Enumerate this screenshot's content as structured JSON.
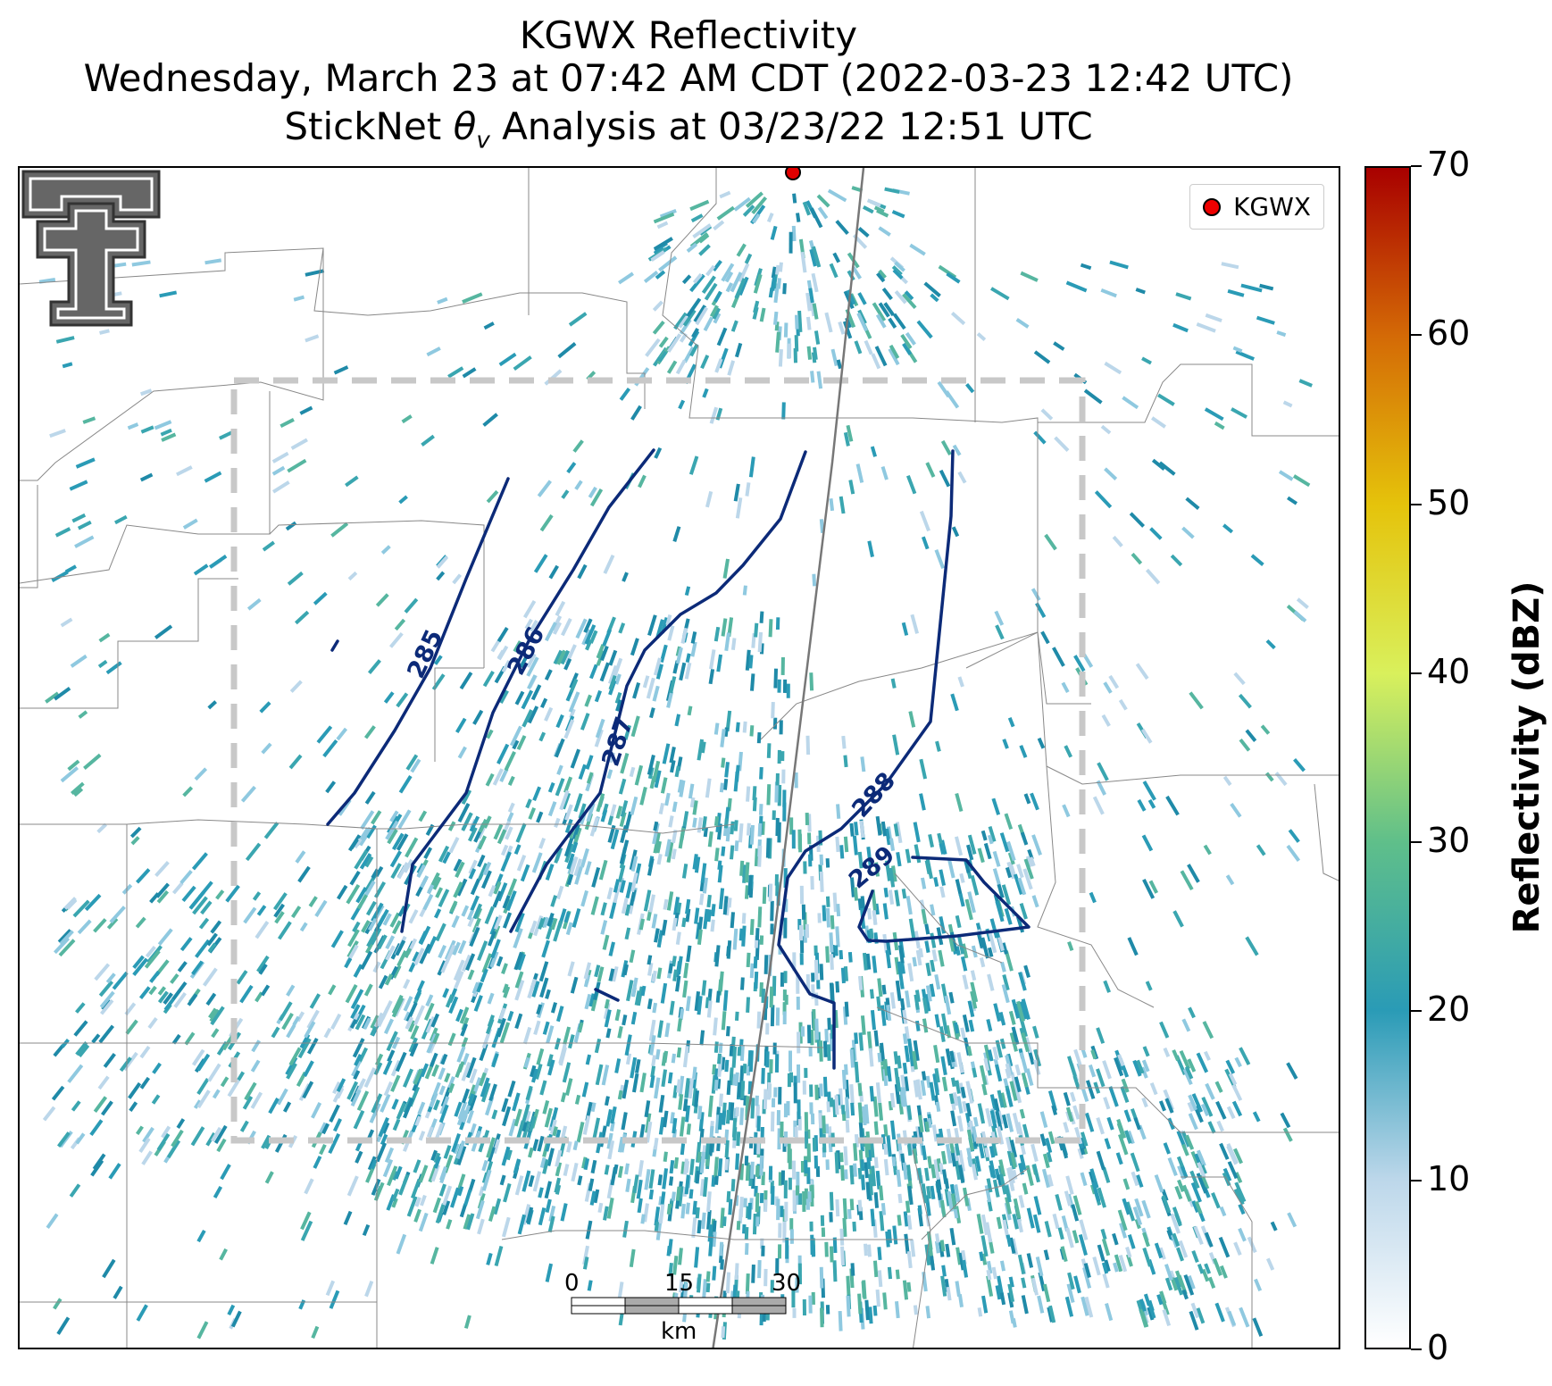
{
  "title": {
    "line1": "KGWX Reflectivity",
    "line2": "Wednesday, March 23 at 07:42 AM CDT (2022-03-23 12:42 UTC)",
    "line3_pre": "StickNet ",
    "line3_symbol": "θ",
    "line3_sub": "v",
    "line3_post": " Analysis at 03/23/22 12:51 UTC"
  },
  "legend": {
    "label": "KGWX",
    "marker_color": "#e00000"
  },
  "contours": {
    "color": "#0c2a78",
    "labels": [
      "285",
      "286",
      "287",
      "288",
      "289"
    ]
  },
  "colorbar": {
    "title": "Reflectivity (dBZ)",
    "ticks": [
      "0",
      "10",
      "20",
      "30",
      "40",
      "50",
      "60",
      "70"
    ],
    "colors": [
      "#ffffff",
      "#bcd7ea",
      "#2a9bb6",
      "#5fbf8a",
      "#d9f05c",
      "#e5c30b",
      "#d46a06",
      "#a80000"
    ]
  },
  "scalebar": {
    "ticks": [
      "0",
      "15",
      "30"
    ],
    "unit": "km"
  },
  "logo": {
    "name": "Texas Tech Double T"
  }
}
